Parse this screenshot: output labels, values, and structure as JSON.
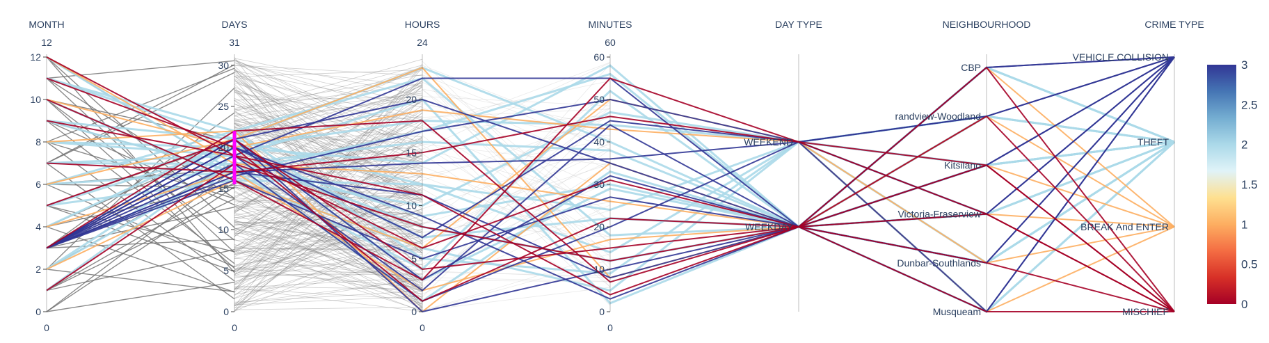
{
  "chart_data": {
    "type": "parallel_coordinates",
    "dimensions": [
      {
        "key": "month",
        "label": "MONTH",
        "range": [
          0,
          12
        ],
        "range_labels": [
          "0",
          "12"
        ],
        "ticks": [
          0,
          2,
          4,
          6,
          8,
          10,
          12
        ]
      },
      {
        "key": "days",
        "label": "DAYS",
        "range": [
          0,
          31
        ],
        "range_labels": [
          "0",
          "31"
        ],
        "ticks": [
          0,
          5,
          10,
          15,
          20,
          25,
          30
        ],
        "constraint": [
          15.5,
          22
        ]
      },
      {
        "key": "hours",
        "label": "HOURS",
        "range": [
          0,
          24
        ],
        "range_labels": [
          "0",
          "24"
        ],
        "ticks": [
          0,
          5,
          10,
          15,
          20
        ]
      },
      {
        "key": "minutes",
        "label": "MINUTES",
        "range": [
          0,
          60
        ],
        "range_labels": [
          "0",
          "60"
        ],
        "ticks": [
          0,
          10,
          20,
          30,
          40,
          50,
          60
        ]
      },
      {
        "key": "day_type",
        "label": "DAY TYPE",
        "range": [
          0,
          1
        ],
        "range_labels": [
          "",
          ""
        ],
        "categories": [
          "WEEKDAY",
          "WEEKEND"
        ]
      },
      {
        "key": "neighbourhood",
        "label": "NEIGHBOURHOOD",
        "range": [
          0,
          5
        ],
        "range_labels": [
          "",
          ""
        ],
        "categories": [
          "Musqueam",
          "Dunbar-Southlands",
          "Victoria-Fraserview",
          "Kitsilano",
          "randview-Woodland",
          "CBP"
        ]
      },
      {
        "key": "crime_type",
        "label": "CRIME TYPE",
        "range": [
          0,
          3
        ],
        "range_labels": [
          "",
          ""
        ],
        "categories": [
          "MISCHIEF",
          "BREAK And ENTER",
          "THEFT",
          "VEHICLE COLLISION"
        ]
      }
    ],
    "color_variable": "crime_type",
    "colorscale": [
      "#a50026",
      "#d73027",
      "#f46d43",
      "#fdae61",
      "#fee090",
      "#e0f3f8",
      "#abd9e9",
      "#74add1",
      "#4575b4",
      "#313695"
    ],
    "colorbar": {
      "range": [
        0,
        3
      ],
      "ticks": [
        "0",
        "0.5",
        "1",
        "1.5",
        "2",
        "2.5",
        "3"
      ]
    },
    "highlighted_month": 3,
    "records": [
      [
        3,
        21,
        3,
        32,
        0,
        3,
        3
      ],
      [
        3,
        21,
        20,
        35,
        0,
        5,
        3
      ],
      [
        3,
        20,
        7,
        45,
        1,
        2,
        3
      ],
      [
        3,
        19,
        22,
        55,
        0,
        0,
        3
      ],
      [
        3,
        18,
        1,
        20,
        1,
        4,
        3
      ],
      [
        3,
        17,
        11,
        8,
        0,
        1,
        3
      ],
      [
        3,
        16,
        5,
        27,
        0,
        3,
        3
      ],
      [
        3,
        16.5,
        17,
        50,
        1,
        4,
        3
      ],
      [
        3,
        21,
        0,
        10,
        0,
        2,
        3
      ],
      [
        3,
        17,
        14,
        36,
        1,
        0,
        3
      ],
      [
        3,
        20,
        9,
        3,
        0,
        5,
        3
      ],
      [
        3,
        19,
        2,
        44,
        0,
        1,
        3
      ],
      [
        5,
        20,
        18,
        44,
        1,
        4,
        2
      ],
      [
        7,
        19,
        8,
        12,
        0,
        3,
        2
      ],
      [
        9,
        17,
        4,
        52,
        0,
        1,
        2
      ],
      [
        11,
        21,
        12,
        24,
        1,
        2,
        2
      ],
      [
        2,
        18,
        16,
        38,
        0,
        0,
        2
      ],
      [
        6,
        22,
        22,
        18,
        0,
        5,
        2
      ],
      [
        10,
        16,
        6,
        5,
        1,
        3,
        2
      ],
      [
        8,
        20,
        14,
        58,
        0,
        2,
        2
      ],
      [
        4,
        21,
        3,
        29,
        0,
        4,
        2
      ],
      [
        12,
        17,
        10,
        47,
        1,
        1,
        2
      ],
      [
        1,
        19,
        20,
        2,
        0,
        3,
        2
      ],
      [
        7,
        18,
        1,
        33,
        0,
        5,
        2
      ],
      [
        5,
        16,
        12,
        14,
        1,
        0,
        2
      ],
      [
        9,
        21,
        23,
        40,
        0,
        2,
        2
      ],
      [
        2,
        20,
        7,
        22,
        0,
        4,
        2
      ],
      [
        6,
        17,
        17,
        56,
        0,
        1,
        2
      ],
      [
        11,
        22,
        5,
        9,
        1,
        3,
        2
      ],
      [
        8,
        19,
        9,
        30,
        0,
        5,
        2
      ],
      [
        4,
        17,
        2,
        17,
        0,
        2,
        1
      ],
      [
        10,
        20,
        19,
        43,
        1,
        1,
        1
      ],
      [
        6,
        21,
        23,
        8,
        0,
        3,
        1
      ],
      [
        12,
        18,
        13,
        26,
        0,
        4,
        1
      ],
      [
        2,
        16,
        6,
        50,
        1,
        0,
        1
      ],
      [
        8,
        22,
        0,
        35,
        0,
        5,
        1
      ],
      [
        9,
        19,
        11,
        4,
        0,
        2,
        0
      ],
      [
        5,
        21,
        4,
        15,
        0,
        1,
        0
      ],
      [
        7,
        17,
        15,
        46,
        1,
        3,
        0
      ],
      [
        11,
        20,
        1,
        22,
        0,
        0,
        0
      ],
      [
        1,
        18,
        8,
        12,
        0,
        4,
        0
      ],
      [
        10,
        16,
        3,
        55,
        1,
        2,
        0
      ],
      [
        3,
        22,
        18,
        7,
        0,
        5,
        0
      ],
      [
        12,
        19,
        6,
        31,
        0,
        3,
        0
      ]
    ]
  }
}
